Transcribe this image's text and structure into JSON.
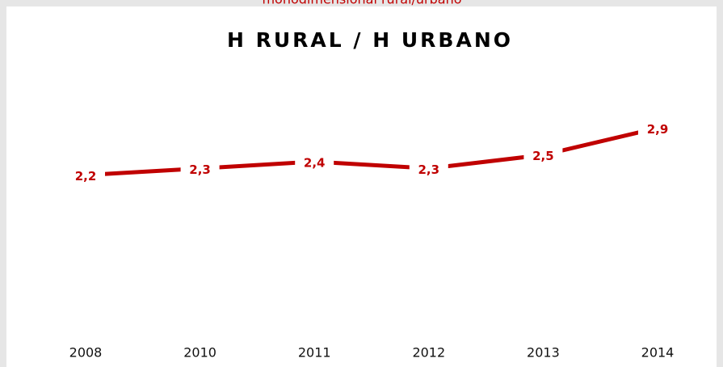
{
  "chart_data": {
    "type": "line",
    "subtitle": "monodimensional rural/urbano",
    "title": "H RURAL / H URBANO",
    "categories": [
      "2008",
      "2010",
      "2011",
      "2012",
      "2013",
      "2014"
    ],
    "series": [
      {
        "name": "H rural / H urbano",
        "color": "#c00000",
        "values": [
          2.2,
          2.3,
          2.4,
          2.3,
          2.5,
          2.9
        ],
        "value_labels": [
          "2,2",
          "2,3",
          "2,4",
          "2,3",
          "2,5",
          "2,9"
        ]
      }
    ],
    "ylim": [
      0,
      3
    ]
  }
}
